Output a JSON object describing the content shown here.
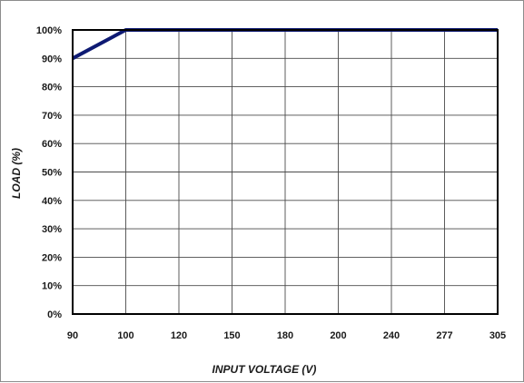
{
  "chart_data": {
    "type": "line",
    "title": "",
    "xlabel": "INPUT VOLTAGE (V)",
    "ylabel": "LOAD (%)",
    "categories": [
      "90",
      "100",
      "120",
      "150",
      "180",
      "200",
      "240",
      "277",
      "305"
    ],
    "x_axis_scale": "categorical (equally spaced)",
    "y_ticks": [
      "0%",
      "10%",
      "20%",
      "30%",
      "40%",
      "50%",
      "60%",
      "70%",
      "80%",
      "90%",
      "100%"
    ],
    "ylim": [
      0,
      100
    ],
    "grid": true,
    "legend": "none",
    "series": [
      {
        "values": [
          90,
          100,
          100,
          100,
          100,
          100,
          100,
          100,
          100
        ]
      }
    ],
    "colors": {
      "series": "#0e1a73",
      "grid": "#4a4a4a",
      "frame": "#000000"
    }
  }
}
